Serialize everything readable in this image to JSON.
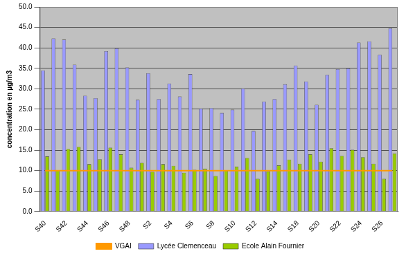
{
  "chart_data": {
    "type": "bar",
    "y_label": "concentration en µg/m3",
    "categories": [
      "S40",
      null,
      "S42",
      null,
      "S44",
      null,
      "S46",
      null,
      "S48",
      null,
      "S2",
      null,
      "S4",
      null,
      "S6",
      null,
      "S8",
      null,
      "S10",
      null,
      "S12",
      null,
      "S14",
      null,
      "S18",
      null,
      "S20",
      null,
      "S22",
      null,
      "S24",
      null,
      "S26",
      null
    ],
    "series": [
      {
        "name": "Lycée Clemenceau",
        "color": "#9999ff",
        "type": "bar",
        "values": [
          34.5,
          42.3,
          42.0,
          35.9,
          28.3,
          27.7,
          39.2,
          39.9,
          35.2,
          27.3,
          33.8,
          27.5,
          31.3,
          28.1,
          33.6,
          25.2,
          25.3,
          24.1,
          24.9,
          30.1,
          19.7,
          26.9,
          27.5,
          31.1,
          35.7,
          31.8,
          26.1,
          33.4,
          34.8,
          35.0,
          41.3,
          41.6,
          38.3,
          44.8
        ]
      },
      {
        "name": "Ecole Alain Fournier",
        "color": "#99cc00",
        "type": "bar",
        "values": [
          13.5,
          10.1,
          15.3,
          15.8,
          11.6,
          12.8,
          15.6,
          14.0,
          10.7,
          11.9,
          9.7,
          11.6,
          11.2,
          9.5,
          10.2,
          10.5,
          8.7,
          10.0,
          11.0,
          13.1,
          8.0,
          9.8,
          11.3,
          12.7,
          11.7,
          14.0,
          12.2,
          15.5,
          13.6,
          15.1,
          13.3,
          11.7,
          8.0,
          14.2
        ]
      },
      {
        "name": "VGAI",
        "color": "#ff9900",
        "type": "line",
        "values": [
          10,
          10,
          10,
          10,
          10,
          10,
          10,
          10,
          10,
          10,
          10,
          10,
          10,
          10,
          10,
          10,
          10,
          10,
          10,
          10,
          10,
          10,
          10,
          10,
          10,
          10,
          10,
          10,
          10,
          10,
          10,
          10,
          10,
          10
        ]
      }
    ],
    "ylim": [
      0,
      50
    ],
    "yticks": [
      {
        "value": 0,
        "label": "0.0"
      },
      {
        "value": 5,
        "label": "5.0"
      },
      {
        "value": 10,
        "label": "10.0"
      },
      {
        "value": 15,
        "label": "15.0"
      },
      {
        "value": 20,
        "label": "20.0"
      },
      {
        "value": 25,
        "label": "25.0"
      },
      {
        "value": 30,
        "label": "30.0"
      },
      {
        "value": 35,
        "label": "35.0"
      },
      {
        "value": 40,
        "label": "40.0"
      },
      {
        "value": 45,
        "label": "45.0"
      },
      {
        "value": 50,
        "label": "50.0"
      }
    ],
    "grid": true,
    "legend": "bottom"
  }
}
